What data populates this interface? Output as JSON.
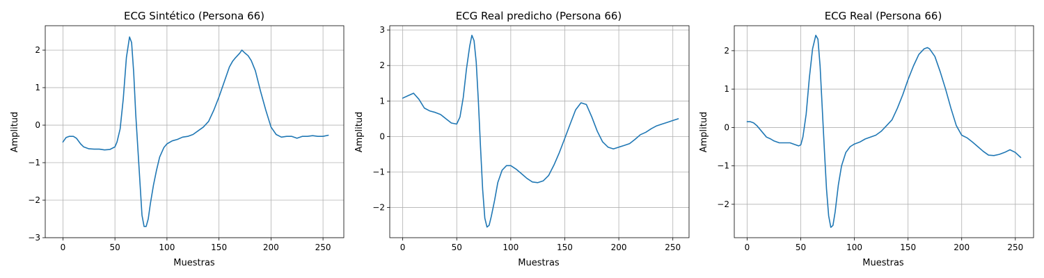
{
  "colors": {
    "series": "#1f77b4",
    "grid": "#b0b0b0",
    "axes": "#000000"
  },
  "chart_data": [
    {
      "type": "line",
      "title": "ECG Sintético (Persona 66)",
      "xlabel": "Muestras",
      "ylabel": "Amplitud",
      "xlim": [
        -17,
        270
      ],
      "ylim": [
        -3.0,
        2.65
      ],
      "xticks": [
        0,
        50,
        100,
        150,
        200,
        250
      ],
      "yticks": [
        -3,
        -2,
        -1,
        0,
        1,
        2
      ],
      "xtick_labels": [
        "0",
        "50",
        "100",
        "150",
        "200",
        "250"
      ],
      "ytick_labels": [
        "−3",
        "−2",
        "−1",
        "0",
        "1",
        "2"
      ],
      "grid": true,
      "series": [
        {
          "x": [
            0,
            3,
            6,
            10,
            13,
            17,
            20,
            25,
            30,
            35,
            40,
            45,
            50,
            52,
            55,
            58,
            61,
            64,
            66,
            68,
            70,
            72,
            74,
            76,
            78,
            80,
            82,
            84,
            87,
            90,
            93,
            97,
            100,
            105,
            110,
            115,
            120,
            125,
            130,
            135,
            140,
            145,
            150,
            155,
            160,
            163,
            166,
            170,
            172,
            175,
            178,
            181,
            185,
            190,
            195,
            200,
            205,
            210,
            215,
            220,
            225,
            230,
            235,
            240,
            245,
            250,
            255
          ],
          "y": [
            -0.45,
            -0.33,
            -0.3,
            -0.3,
            -0.35,
            -0.5,
            -0.58,
            -0.63,
            -0.64,
            -0.64,
            -0.66,
            -0.65,
            -0.58,
            -0.45,
            -0.1,
            0.7,
            1.8,
            2.35,
            2.2,
            1.4,
            0.3,
            -0.6,
            -1.5,
            -2.4,
            -2.7,
            -2.7,
            -2.5,
            -2.1,
            -1.6,
            -1.2,
            -0.85,
            -0.6,
            -0.5,
            -0.42,
            -0.38,
            -0.32,
            -0.3,
            -0.25,
            -0.15,
            -0.05,
            0.1,
            0.4,
            0.75,
            1.15,
            1.55,
            1.7,
            1.8,
            1.92,
            2.0,
            1.92,
            1.85,
            1.72,
            1.45,
            0.9,
            0.4,
            -0.05,
            -0.25,
            -0.32,
            -0.3,
            -0.3,
            -0.35,
            -0.3,
            -0.3,
            -0.28,
            -0.3,
            -0.3,
            -0.27
          ]
        }
      ]
    },
    {
      "type": "line",
      "title": "ECG Real predicho (Persona 66)",
      "xlabel": "Muestras",
      "ylabel": "Amplitud",
      "xlim": [
        -12,
        265
      ],
      "ylim": [
        -2.85,
        3.12
      ],
      "xticks": [
        0,
        50,
        100,
        150,
        200,
        250
      ],
      "yticks": [
        -2,
        -1,
        0,
        1,
        2,
        3
      ],
      "xtick_labels": [
        "0",
        "50",
        "100",
        "150",
        "200",
        "250"
      ],
      "ytick_labels": [
        "−2",
        "−1",
        "0",
        "1",
        "2",
        "3"
      ],
      "grid": true,
      "series": [
        {
          "x": [
            0,
            5,
            10,
            15,
            20,
            25,
            30,
            35,
            40,
            45,
            50,
            53,
            56,
            59,
            62,
            64,
            66,
            68,
            70,
            72,
            74,
            76,
            78,
            80,
            82,
            85,
            88,
            92,
            96,
            100,
            105,
            110,
            115,
            120,
            125,
            130,
            135,
            140,
            145,
            150,
            155,
            160,
            165,
            170,
            175,
            180,
            185,
            190,
            195,
            200,
            205,
            210,
            215,
            220,
            225,
            230,
            235,
            240,
            245,
            250,
            255
          ],
          "y": [
            1.08,
            1.15,
            1.22,
            1.05,
            0.8,
            0.72,
            0.68,
            0.62,
            0.5,
            0.38,
            0.35,
            0.55,
            1.1,
            1.9,
            2.55,
            2.85,
            2.7,
            2.1,
            1.0,
            -0.3,
            -1.5,
            -2.3,
            -2.55,
            -2.5,
            -2.25,
            -1.8,
            -1.3,
            -0.95,
            -0.82,
            -0.82,
            -0.92,
            -1.05,
            -1.18,
            -1.28,
            -1.3,
            -1.25,
            -1.1,
            -0.8,
            -0.45,
            -0.05,
            0.35,
            0.75,
            0.95,
            0.9,
            0.55,
            0.15,
            -0.15,
            -0.3,
            -0.35,
            -0.3,
            -0.25,
            -0.2,
            -0.08,
            0.05,
            0.12,
            0.22,
            0.3,
            0.35,
            0.4,
            0.45,
            0.5
          ]
        }
      ]
    },
    {
      "type": "line",
      "title": "ECG Real (Persona 66)",
      "xlabel": "Muestras",
      "ylabel": "Amplitud",
      "xlim": [
        -12,
        267
      ],
      "ylim": [
        -2.87,
        2.65
      ],
      "xticks": [
        0,
        50,
        100,
        150,
        200,
        250
      ],
      "yticks": [
        -2,
        -1,
        0,
        1,
        2
      ],
      "xtick_labels": [
        "0",
        "50",
        "100",
        "150",
        "200",
        "250"
      ],
      "ytick_labels": [
        "−2",
        "−1",
        "0",
        "1",
        "2"
      ],
      "grid": true,
      "series": [
        {
          "x": [
            0,
            3,
            6,
            9,
            12,
            15,
            18,
            22,
            25,
            30,
            35,
            40,
            45,
            48,
            50,
            52,
            55,
            58,
            61,
            64,
            66,
            68,
            70,
            72,
            74,
            76,
            78,
            80,
            82,
            85,
            88,
            92,
            96,
            100,
            105,
            110,
            115,
            120,
            125,
            130,
            135,
            140,
            145,
            150,
            155,
            160,
            165,
            168,
            170,
            175,
            180,
            185,
            190,
            195,
            200,
            205,
            210,
            215,
            220,
            225,
            230,
            235,
            240,
            245,
            250,
            255
          ],
          "y": [
            0.15,
            0.15,
            0.12,
            0.05,
            -0.05,
            -0.15,
            -0.25,
            -0.3,
            -0.35,
            -0.4,
            -0.4,
            -0.4,
            -0.45,
            -0.48,
            -0.45,
            -0.25,
            0.35,
            1.3,
            2.05,
            2.4,
            2.3,
            1.6,
            0.5,
            -0.6,
            -1.6,
            -2.3,
            -2.6,
            -2.55,
            -2.2,
            -1.5,
            -1.0,
            -0.65,
            -0.5,
            -0.43,
            -0.38,
            -0.3,
            -0.25,
            -0.2,
            -0.1,
            0.05,
            0.2,
            0.5,
            0.85,
            1.25,
            1.6,
            1.9,
            2.05,
            2.08,
            2.05,
            1.85,
            1.45,
            1.0,
            0.5,
            0.05,
            -0.2,
            -0.27,
            -0.38,
            -0.5,
            -0.62,
            -0.72,
            -0.73,
            -0.7,
            -0.65,
            -0.58,
            -0.65,
            -0.78
          ]
        }
      ]
    }
  ]
}
